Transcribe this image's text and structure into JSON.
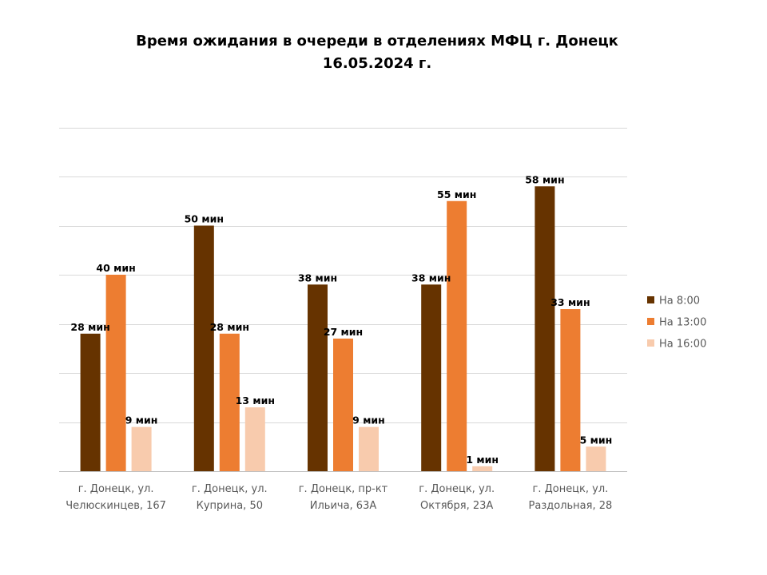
{
  "chart_data": {
    "type": "bar",
    "title": [
      "Время ожидания в очереди в отделениях МФЦ г. Донецк",
      "16.05.2024 г."
    ],
    "categories": [
      [
        "г. Донецк, ул.",
        "Челюскинцев, 167"
      ],
      [
        "г. Донецк, ул.",
        "Куприна, 50"
      ],
      [
        "г. Донецк, пр-кт",
        "Ильича, 63А"
      ],
      [
        "г. Донецк, ул.",
        "Октября, 23А"
      ],
      [
        "г. Донецк, ул.",
        "Раздольная, 28"
      ]
    ],
    "series": [
      {
        "name": "На 8:00",
        "color": "#663300",
        "values": [
          28,
          50,
          38,
          38,
          58
        ]
      },
      {
        "name": "На 13:00",
        "color": "#ED7D31",
        "values": [
          40,
          28,
          27,
          55,
          33
        ]
      },
      {
        "name": "На 16:00",
        "color": "#F8CBAD",
        "values": [
          9,
          13,
          9,
          1,
          5
        ]
      }
    ],
    "value_suffix": " мин",
    "ylim": [
      0,
      70
    ],
    "y_gridlines": true,
    "y_axis_labels_visible": false,
    "legend_position": "right"
  }
}
